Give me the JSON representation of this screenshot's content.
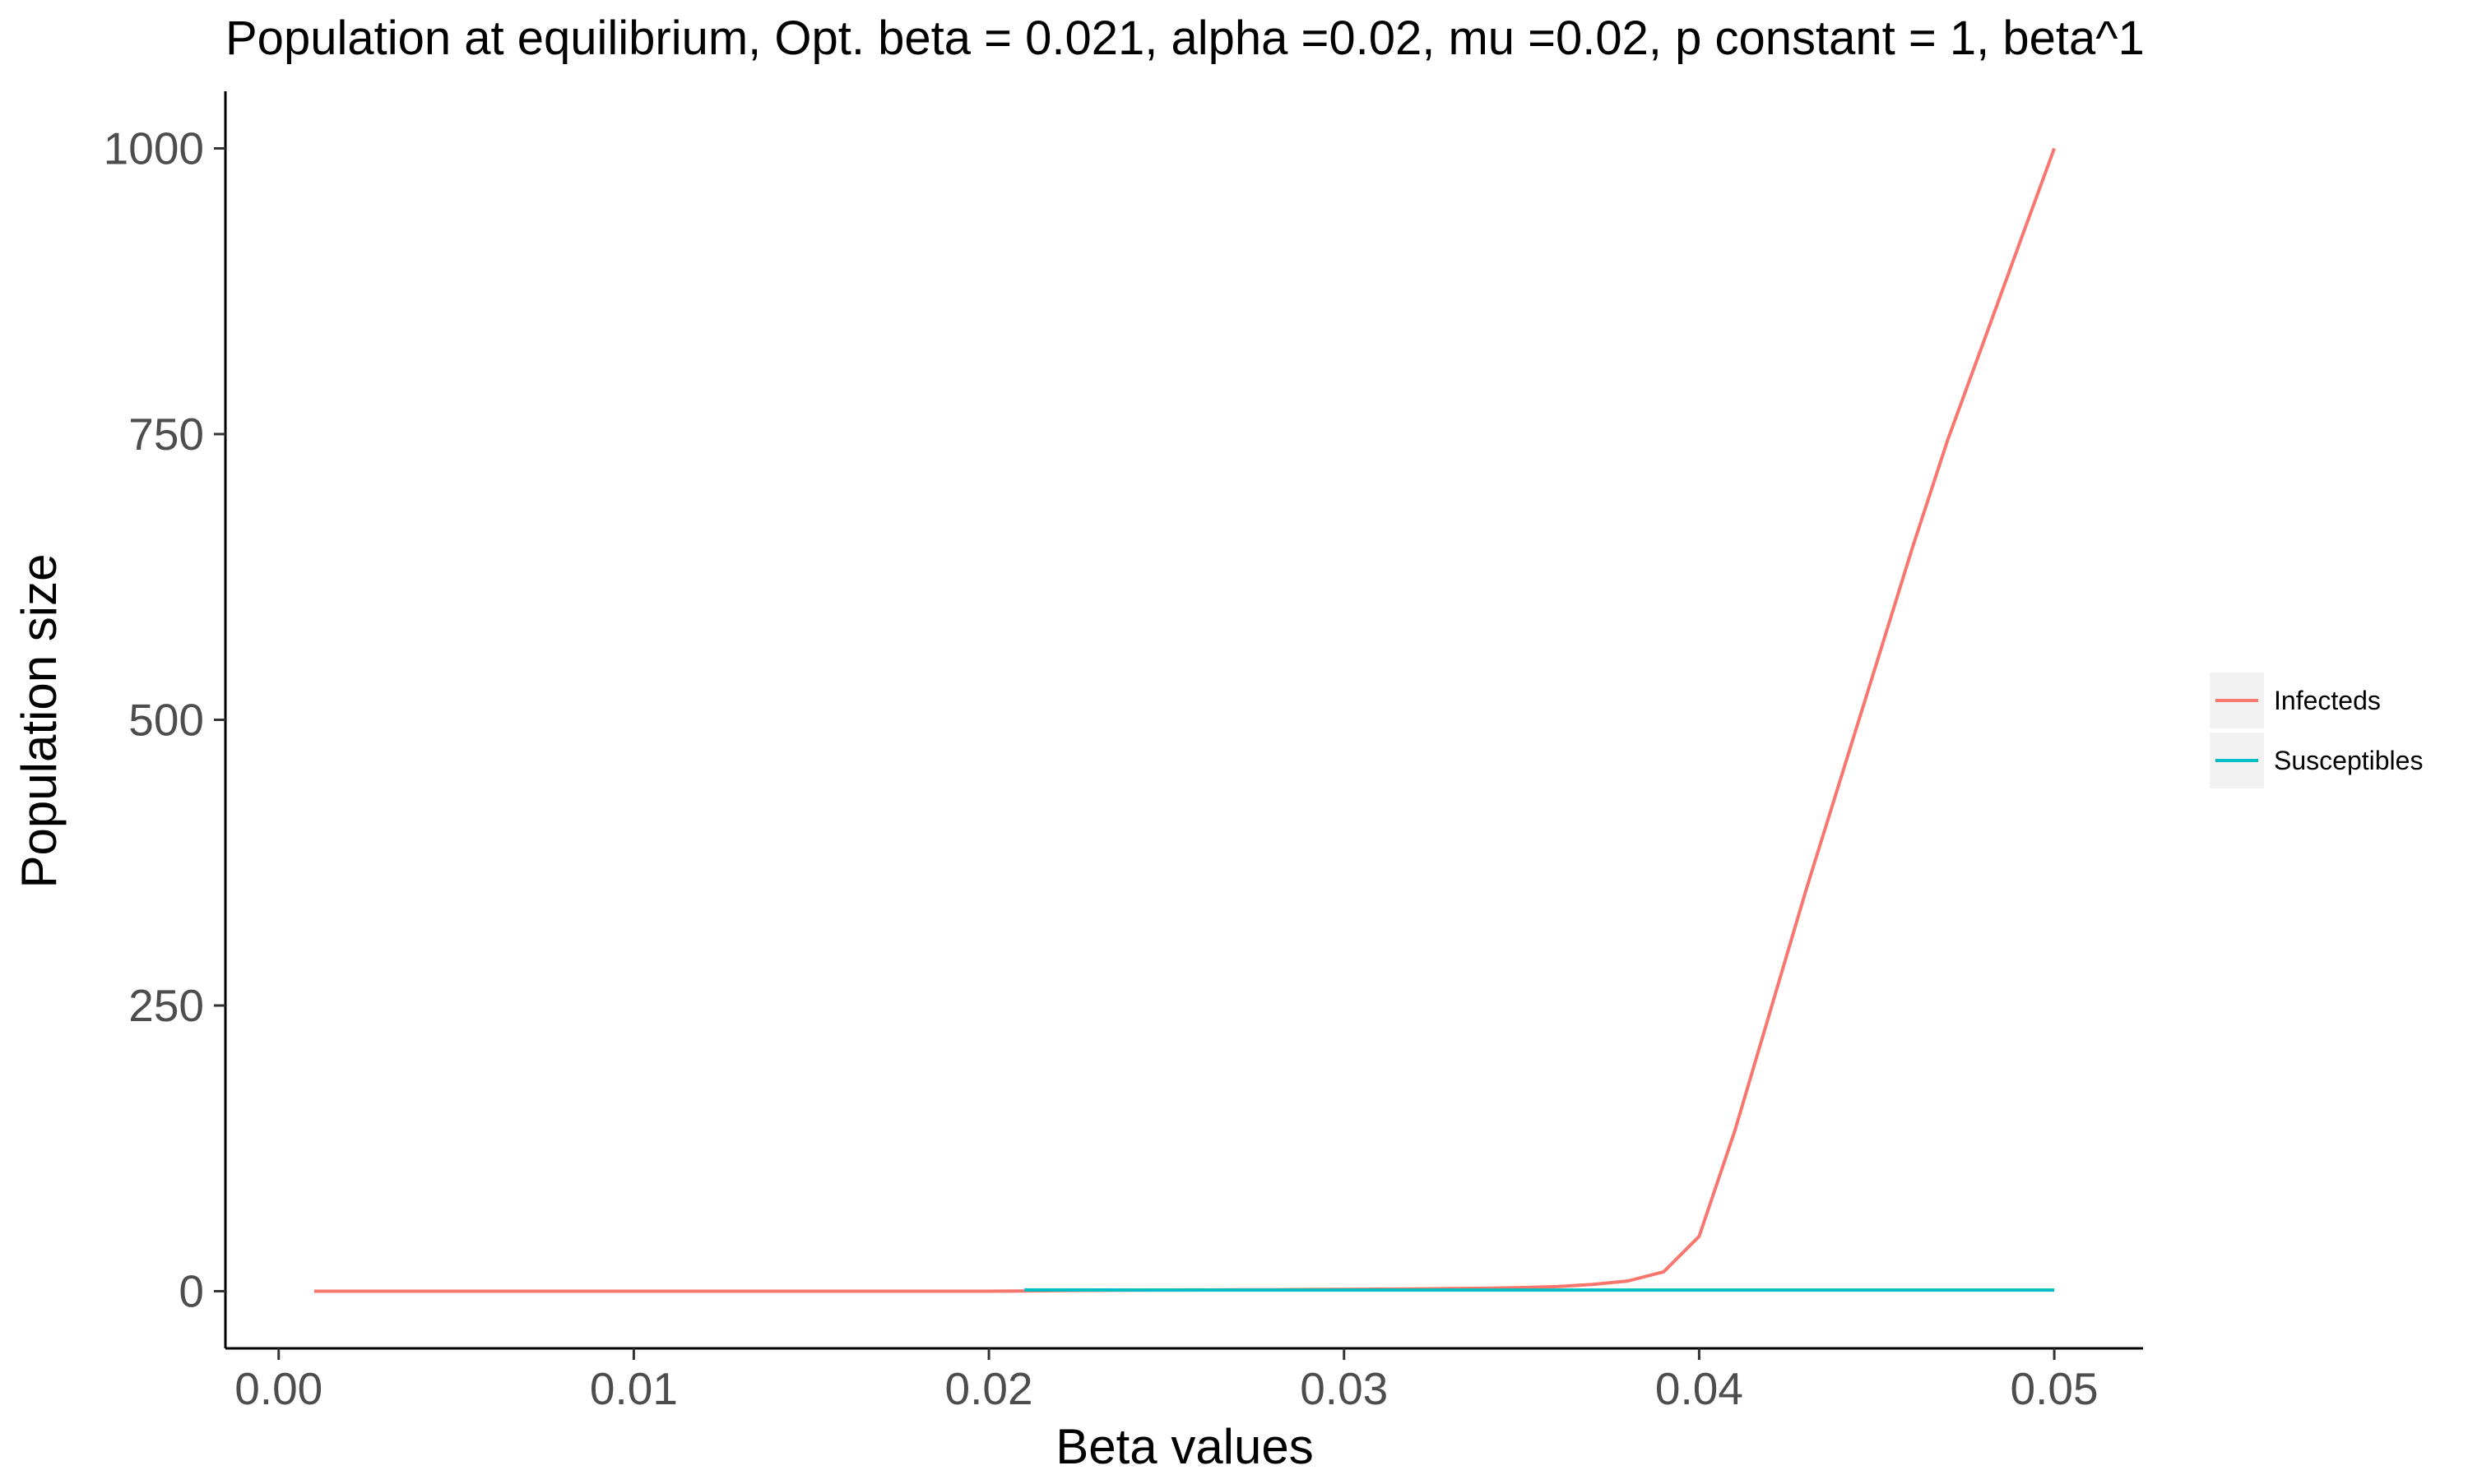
{
  "chart_data": {
    "type": "line",
    "title": "Population at equilibrium, Opt. beta = 0.021, alpha =0.02, mu =0.02, p constant = 1, beta^1",
    "xlabel": "Beta values",
    "ylabel": "Population size",
    "xlim": [
      -0.0015,
      0.0525
    ],
    "ylim": [
      -50,
      1050
    ],
    "x_ticks": [
      0.0,
      0.01,
      0.02,
      0.03,
      0.04,
      0.05
    ],
    "x_tick_labels": [
      "0.00",
      "0.01",
      "0.02",
      "0.03",
      "0.04",
      "0.05"
    ],
    "y_ticks": [
      0,
      250,
      500,
      750,
      1000
    ],
    "y_tick_labels": [
      "0",
      "250",
      "500",
      "750",
      "1000"
    ],
    "grid": false,
    "legend_position": "right",
    "series": [
      {
        "name": "Infecteds",
        "color": "#F8766D",
        "x": [
          0.001,
          0.002,
          0.003,
          0.004,
          0.005,
          0.006,
          0.007,
          0.008,
          0.009,
          0.01,
          0.011,
          0.012,
          0.013,
          0.014,
          0.015,
          0.016,
          0.017,
          0.018,
          0.019,
          0.02,
          0.021,
          0.022,
          0.023,
          0.024,
          0.025,
          0.026,
          0.027,
          0.028,
          0.029,
          0.03,
          0.031,
          0.032,
          0.033,
          0.034,
          0.035,
          0.036,
          0.037,
          0.038,
          0.039,
          0.04,
          0.041,
          0.042,
          0.043,
          0.044,
          0.045,
          0.046,
          0.047,
          0.048,
          0.049,
          0.05
        ],
        "values": [
          0,
          0,
          0,
          0,
          0,
          0,
          0,
          0,
          0,
          0,
          0,
          0,
          0,
          0,
          0,
          0,
          0,
          0,
          0,
          0,
          0.2,
          0.5,
          0.7,
          0.9,
          1,
          1.1,
          1.2,
          1.3,
          1.5,
          1.6,
          1.8,
          2,
          2.3,
          2.6,
          3.2,
          4,
          6,
          9,
          17,
          48,
          140,
          245,
          350,
          450,
          550,
          650,
          745,
          830,
          915,
          1000
        ]
      },
      {
        "name": "Susceptibles",
        "color": "#00BFC4",
        "x": [
          0.021,
          0.022,
          0.023,
          0.024,
          0.025,
          0.026,
          0.027,
          0.028,
          0.029,
          0.03,
          0.031,
          0.032,
          0.033,
          0.034,
          0.035,
          0.036,
          0.037,
          0.038,
          0.039,
          0.04,
          0.041,
          0.042,
          0.043,
          0.044,
          0.045,
          0.046,
          0.047,
          0.048,
          0.049,
          0.05
        ],
        "values": [
          1.05,
          1.05,
          1.05,
          1,
          1,
          1,
          1,
          1,
          1,
          1,
          1,
          1,
          1,
          1,
          1,
          1,
          1,
          1,
          1,
          1,
          1,
          1,
          1,
          1,
          1,
          1,
          1,
          1,
          1,
          1
        ]
      }
    ]
  }
}
